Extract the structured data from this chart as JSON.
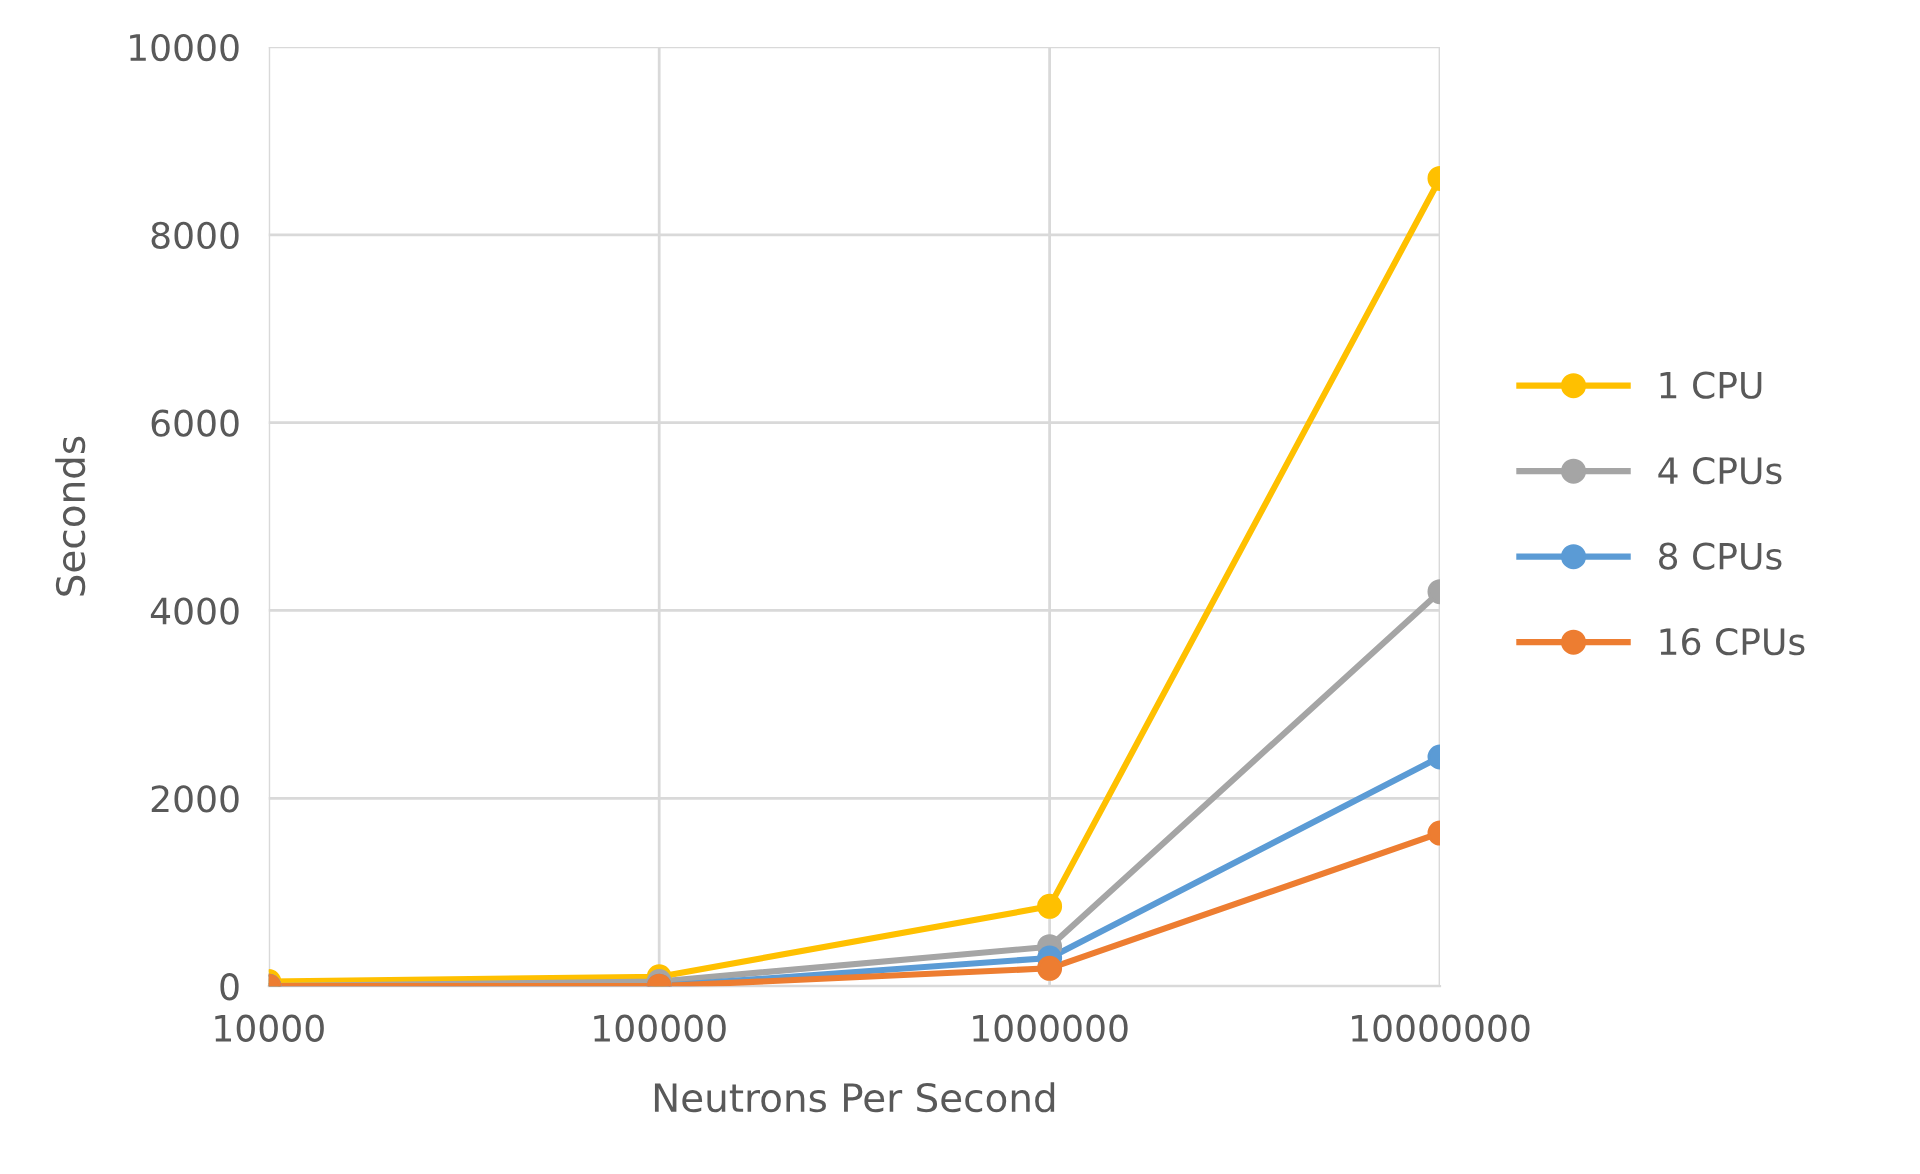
{
  "chart_data": {
    "type": "line",
    "xlabel": "Neutrons Per Second",
    "ylabel": "Seconds",
    "log": "x",
    "x": [
      10000,
      100000,
      1000000,
      10000000
    ],
    "xlim": [
      10000,
      10000000
    ],
    "xticks": [
      10000,
      100000,
      1000000,
      10000000
    ],
    "ylim": [
      0,
      10000
    ],
    "yticks": [
      0,
      2000,
      4000,
      6000,
      8000,
      10000
    ],
    "grid": true,
    "legend": "right",
    "marker": "circle",
    "line_style": "solid",
    "series": [
      {
        "name": "1 CPU",
        "color": "#ffc000",
        "values": [
          50,
          100,
          850,
          8600
        ]
      },
      {
        "name": "4 CPUs",
        "color": "#a5a5a5",
        "values": [
          0,
          50,
          420,
          4200
        ]
      },
      {
        "name": "8 CPUs",
        "color": "#5b9bd5",
        "values": [
          0,
          0,
          300,
          2440
        ]
      },
      {
        "name": "16 CPUs",
        "color": "#ed7d31",
        "values": [
          0,
          0,
          190,
          1630
        ]
      }
    ]
  }
}
